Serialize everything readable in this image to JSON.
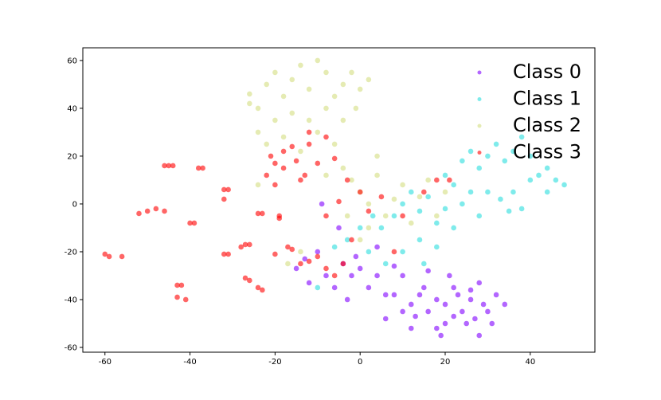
{
  "chart_data": {
    "type": "scatter",
    "xlim": [
      -65.2,
      55.2
    ],
    "ylim": [
      -62,
      65.3
    ],
    "xticks": [
      -60,
      -40,
      -20,
      0,
      20,
      40
    ],
    "yticks": [
      -60,
      -40,
      -20,
      0,
      20,
      40,
      60
    ],
    "legend": "upper right",
    "series": [
      {
        "name": "Class 0",
        "color": "#8000ff",
        "x": [
          -15,
          -13,
          -10,
          -8,
          -6,
          -4,
          -2,
          0,
          2,
          4,
          -12,
          -3,
          6,
          8,
          10,
          12,
          14,
          16,
          18,
          20,
          22,
          24,
          26,
          28,
          30,
          32,
          34,
          28,
          25,
          18,
          12,
          6,
          10,
          15,
          20,
          23,
          27,
          31,
          16,
          19,
          22,
          -9,
          -5,
          4,
          8,
          13,
          26,
          29,
          21,
          -1
        ],
        "values": [
          -27,
          -23,
          -20,
          -30,
          -35,
          -25,
          -30,
          -27,
          -35,
          -30,
          -33,
          -40,
          -38,
          -26,
          -30,
          -42,
          -38,
          -45,
          -40,
          -50,
          -35,
          -45,
          -40,
          -33,
          -45,
          -38,
          -42,
          -55,
          -50,
          -52,
          -52,
          -48,
          -45,
          -35,
          -42,
          -38,
          -48,
          -50,
          -28,
          -55,
          -47,
          0,
          -10,
          -18,
          -38,
          -47,
          -36,
          -42,
          -30,
          -22
        ]
      },
      {
        "name": "Class 1",
        "color": "#2adddd",
        "x": [
          -10,
          -6,
          -3,
          2,
          5,
          8,
          10,
          12,
          14,
          16,
          18,
          20,
          22,
          24,
          26,
          28,
          30,
          32,
          34,
          36,
          38,
          40,
          42,
          44,
          46,
          48,
          36,
          40,
          30,
          33,
          35,
          28,
          22,
          18,
          14,
          10,
          6,
          15,
          3,
          0,
          24,
          26,
          38,
          44,
          20
        ],
        "values": [
          -35,
          -18,
          -15,
          -20,
          -10,
          -5,
          0,
          5,
          -3,
          3,
          -8,
          -2,
          8,
          0,
          5,
          15,
          20,
          25,
          18,
          22,
          28,
          20,
          12,
          15,
          10,
          8,
          5,
          10,
          5,
          2,
          -3,
          -5,
          -10,
          -18,
          -15,
          -20,
          -25,
          -25,
          -5,
          -10,
          18,
          22,
          -2,
          5,
          12
        ]
      },
      {
        "name": "Class 2",
        "color": "#d4dd80",
        "x": [
          -26,
          -24,
          -22,
          -20,
          -18,
          -16,
          -14,
          -12,
          -10,
          -8,
          -6,
          -4,
          -2,
          0,
          2,
          -20,
          -16,
          -12,
          -8,
          -4,
          -1,
          -24,
          -22,
          -18,
          -14,
          -10,
          -6,
          -4,
          -2,
          0,
          2,
          4,
          6,
          8,
          10,
          12,
          14,
          16,
          18,
          20,
          -3,
          0,
          2,
          -24,
          -26,
          -14,
          -17,
          4,
          -8
        ],
        "values": [
          46,
          40,
          50,
          55,
          45,
          52,
          58,
          48,
          60,
          55,
          45,
          50,
          55,
          48,
          52,
          35,
          38,
          35,
          40,
          35,
          40,
          30,
          25,
          28,
          22,
          30,
          25,
          15,
          10,
          5,
          0,
          12,
          -5,
          2,
          8,
          -8,
          3,
          10,
          -5,
          5,
          -5,
          -15,
          -10,
          8,
          42,
          -20,
          -25,
          20,
          12
        ]
      },
      {
        "name": "Class 3",
        "color": "#ff0000",
        "x": [
          -60,
          -59,
          -56,
          -45,
          -46,
          -44,
          -38,
          -37,
          -32,
          -31,
          -50,
          -48,
          -46,
          -52,
          -40,
          -39,
          -43,
          -42,
          -43,
          -41,
          -32,
          -31,
          -32,
          -27,
          -28,
          -26,
          -27,
          -26,
          -24,
          -23,
          -23,
          -24,
          -19,
          -19,
          -20,
          -17,
          -21,
          -20,
          -18,
          -15,
          -13,
          -16,
          -12,
          -14,
          -10,
          -8,
          -12,
          -6,
          -16,
          -12,
          -8,
          -6,
          -10,
          -4,
          -2,
          -8,
          -5,
          -3,
          0,
          2,
          5,
          8,
          -14,
          15,
          18,
          21,
          10,
          -22,
          -18,
          -20
        ],
        "values": [
          -21,
          -22,
          -22,
          16,
          16,
          16,
          15,
          15,
          6,
          6,
          -3,
          -2,
          -3,
          -4,
          -8,
          -8,
          -34,
          -34,
          -39,
          -40,
          -21,
          -21,
          2,
          -17,
          -18,
          -17,
          -31,
          -32,
          -35,
          -36,
          -4,
          -4,
          -5,
          -6,
          -21,
          -18,
          20,
          17,
          15,
          18,
          12,
          24,
          25,
          10,
          17,
          28,
          30,
          19,
          -19,
          -24,
          -27,
          -30,
          -22,
          -25,
          -15,
          -5,
          1,
          10,
          5,
          -3,
          3,
          -20,
          -25,
          5,
          10,
          10,
          -5,
          12,
          22,
          8
        ]
      }
    ]
  }
}
